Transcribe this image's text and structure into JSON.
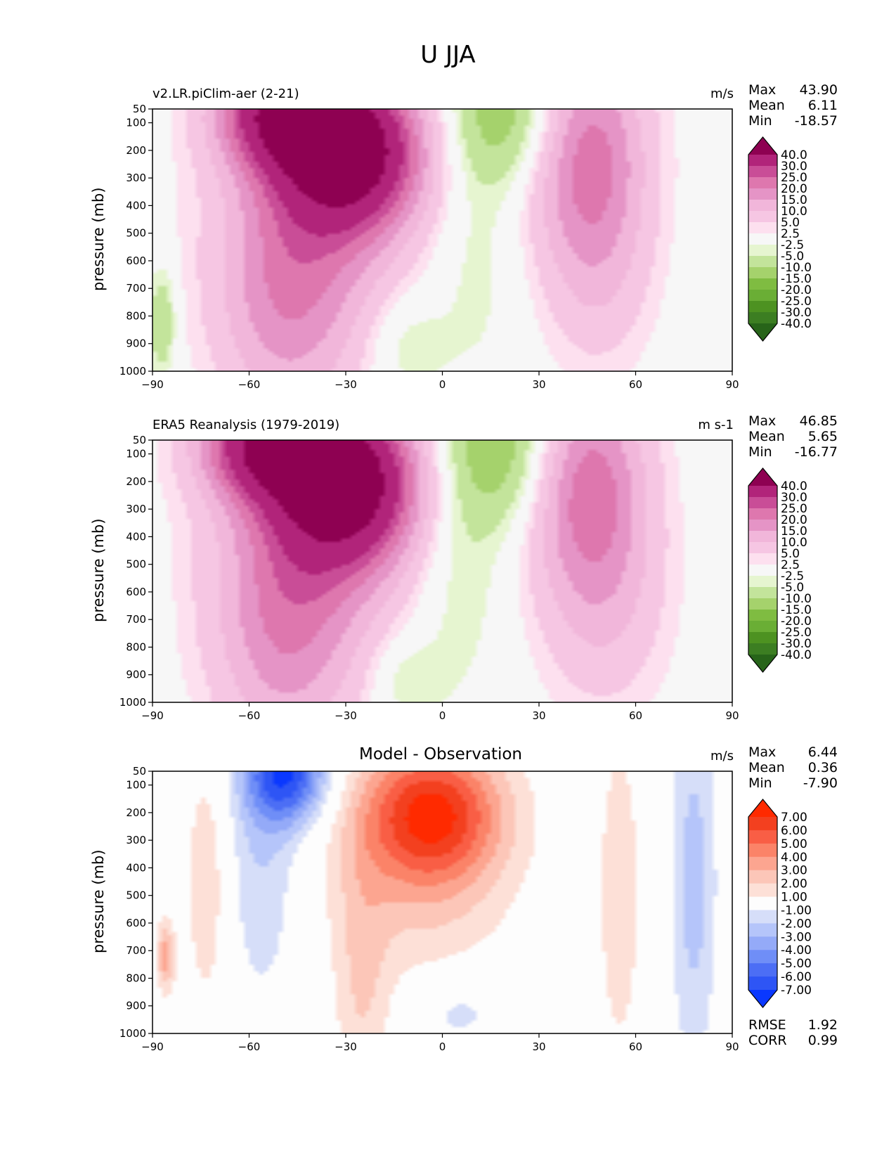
{
  "suptitle": "U JJA",
  "chart_data": [
    {
      "type": "heatmap",
      "title": "v2.LR.piClim-aer (2-21)",
      "units": "m/s",
      "ylabel": "pressure (mb)",
      "xticks": [
        -90,
        -60,
        -30,
        0,
        30,
        60,
        90
      ],
      "yticks": [
        50,
        100,
        200,
        300,
        400,
        500,
        600,
        700,
        800,
        900,
        1000
      ],
      "xlim": [
        -90,
        90
      ],
      "ylim": [
        1000,
        50
      ],
      "stats": {
        "max_label": "Max",
        "max": "43.90",
        "mean_label": "Mean",
        "mean": "6.11",
        "min_label": "Min",
        "min": "-18.57"
      },
      "colorbar": {
        "levels": [
          "-40.0",
          "-30.0",
          "-25.0",
          "-20.0",
          "-15.0",
          "-10.0",
          "-5.0",
          "-2.5",
          "2.5",
          "5.0",
          "10.0",
          "15.0",
          "20.0",
          "25.0",
          "30.0",
          "40.0"
        ],
        "colors": [
          "#276419",
          "#3c7e22",
          "#4d9221",
          "#6aae35",
          "#7fbc41",
          "#a5d26c",
          "#c3e49b",
          "#e6f5d0",
          "#f7f7f7",
          "#fde0ef",
          "#f6c6e3",
          "#f1b6da",
          "#e594c6",
          "#de77ae",
          "#c94d97",
          "#b1247a",
          "#8e0152"
        ]
      },
      "features": [
        {
          "lat": -28,
          "p": 200,
          "sx": 16,
          "sp": 200,
          "amp": 42
        },
        {
          "lat": -50,
          "p": 60,
          "sx": 14,
          "sp": 140,
          "amp": 32
        },
        {
          "lat": -42,
          "p": 500,
          "sx": 20,
          "sp": 380,
          "amp": 16
        },
        {
          "lat": -50,
          "p": 800,
          "sx": 14,
          "sp": 280,
          "amp": 9
        },
        {
          "lat": 45,
          "p": 200,
          "sx": 13,
          "sp": 280,
          "amp": 22
        },
        {
          "lat": 48,
          "p": 650,
          "sx": 12,
          "sp": 260,
          "amp": 8
        },
        {
          "lat": 20,
          "p": 70,
          "sx": 13,
          "sp": 180,
          "amp": -14
        },
        {
          "lat": 10,
          "p": 550,
          "sx": 10,
          "sp": 380,
          "amp": -4
        },
        {
          "lat": -12,
          "p": 900,
          "sx": 9,
          "sp": 140,
          "amp": -6
        },
        {
          "lat": -87,
          "p": 820,
          "sx": 3,
          "sp": 140,
          "amp": -10
        }
      ]
    },
    {
      "type": "heatmap",
      "title": "ERA5 Reanalysis (1979-2019)",
      "units": "m s-1",
      "ylabel": "pressure (mb)",
      "xticks": [
        -90,
        -60,
        -30,
        0,
        30,
        60,
        90
      ],
      "yticks": [
        50,
        100,
        200,
        300,
        400,
        500,
        600,
        700,
        800,
        900,
        1000
      ],
      "xlim": [
        -90,
        90
      ],
      "ylim": [
        1000,
        50
      ],
      "stats": {
        "max_label": "Max",
        "max": "46.85",
        "mean_label": "Mean",
        "mean": "5.65",
        "min_label": "Min",
        "min": "-16.77"
      },
      "colorbar": {
        "levels": [
          "-40.0",
          "-30.0",
          "-25.0",
          "-20.0",
          "-15.0",
          "-10.0",
          "-5.0",
          "-2.5",
          "2.5",
          "5.0",
          "10.0",
          "15.0",
          "20.0",
          "25.0",
          "30.0",
          "40.0"
        ],
        "colors": [
          "#276419",
          "#3c7e22",
          "#4d9221",
          "#6aae35",
          "#7fbc41",
          "#a5d26c",
          "#c3e49b",
          "#e6f5d0",
          "#f7f7f7",
          "#fde0ef",
          "#f6c6e3",
          "#f1b6da",
          "#e594c6",
          "#de77ae",
          "#c94d97",
          "#b1247a",
          "#8e0152"
        ]
      },
      "features": [
        {
          "lat": -29,
          "p": 200,
          "sx": 16,
          "sp": 210,
          "amp": 43
        },
        {
          "lat": -55,
          "p": 60,
          "sx": 14,
          "sp": 140,
          "amp": 34
        },
        {
          "lat": -44,
          "p": 500,
          "sx": 20,
          "sp": 380,
          "amp": 16
        },
        {
          "lat": -50,
          "p": 800,
          "sx": 14,
          "sp": 300,
          "amp": 9
        },
        {
          "lat": 45,
          "p": 200,
          "sx": 13,
          "sp": 280,
          "amp": 22
        },
        {
          "lat": 50,
          "p": 650,
          "sx": 14,
          "sp": 280,
          "amp": 9
        },
        {
          "lat": 18,
          "p": 80,
          "sx": 13,
          "sp": 200,
          "amp": -15
        },
        {
          "lat": 5,
          "p": 500,
          "sx": 10,
          "sp": 350,
          "amp": -5
        },
        {
          "lat": -12,
          "p": 920,
          "sx": 8,
          "sp": 120,
          "amp": -6
        },
        {
          "lat": -87,
          "p": 850,
          "sx": 2,
          "sp": 150,
          "amp": -3
        }
      ]
    },
    {
      "type": "heatmap",
      "title": "Model - Observation",
      "units": "m/s",
      "ylabel": "pressure (mb)",
      "xticks": [
        -90,
        -60,
        -30,
        0,
        30,
        60,
        90
      ],
      "yticks": [
        50,
        100,
        200,
        300,
        400,
        500,
        600,
        700,
        800,
        900,
        1000
      ],
      "xlim": [
        -90,
        90
      ],
      "ylim": [
        1000,
        50
      ],
      "stats": {
        "max_label": "Max",
        "max": "6.44",
        "mean_label": "Mean",
        "mean": "0.36",
        "min_label": "Min",
        "min": "-7.90"
      },
      "extra_stats": {
        "rmse_label": "RMSE",
        "rmse": "1.92",
        "corr_label": "CORR",
        "corr": "0.99"
      },
      "colorbar": {
        "levels": [
          "-7.00",
          "-6.00",
          "-5.00",
          "-4.00",
          "-3.00",
          "-2.00",
          "-1.00",
          "1.00",
          "2.00",
          "3.00",
          "4.00",
          "5.00",
          "6.00",
          "7.00"
        ],
        "colors": [
          "#0a38ff",
          "#2e55f5",
          "#4c6ef5",
          "#6f8ef7",
          "#94aaf8",
          "#b5c5fa",
          "#d6def9",
          "#fdfdfd",
          "#fde0d7",
          "#fcc6b8",
          "#fca590",
          "#fb8368",
          "#f95e45",
          "#f3401f",
          "#ff2a00"
        ]
      },
      "features": [
        {
          "lat": -3,
          "p": 200,
          "sx": 15,
          "sp": 170,
          "amp": 5.8
        },
        {
          "lat": -7,
          "p": 380,
          "sx": 20,
          "sp": 300,
          "amp": 2.4
        },
        {
          "lat": -25,
          "p": 850,
          "sx": 6,
          "sp": 350,
          "amp": 1.8
        },
        {
          "lat": -48,
          "p": 60,
          "sx": 9,
          "sp": 130,
          "amp": -6.5
        },
        {
          "lat": -56,
          "p": 350,
          "sx": 8,
          "sp": 380,
          "amp": -2.0
        },
        {
          "lat": -73,
          "p": 450,
          "sx": 5,
          "sp": 350,
          "amp": 1.8
        },
        {
          "lat": -86,
          "p": 720,
          "sx": 2,
          "sp": 90,
          "amp": 3.5
        },
        {
          "lat": 55,
          "p": 500,
          "sx": 5,
          "sp": 450,
          "amp": 1.7
        },
        {
          "lat": 78,
          "p": 450,
          "sx": 5,
          "sp": 480,
          "amp": -2.5
        },
        {
          "lat": 5,
          "p": 920,
          "sx": 10,
          "sp": 100,
          "amp": -1.5
        }
      ]
    }
  ]
}
